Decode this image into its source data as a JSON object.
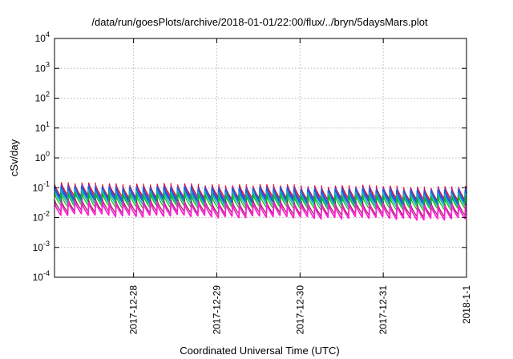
{
  "chart_data": {
    "type": "line",
    "title": "/data/run/goesPlots/archive/2018-01-01/22:00/flux/../bryn/5daysMars.plot",
    "xlabel": "Coordinated Universal Time (UTC)",
    "ylabel": "cSv/day",
    "yscale": "log",
    "ylim": [
      0.0001,
      10000
    ],
    "xlim": [
      -0.95,
      4.0
    ],
    "x_unit": "days relative to 2017-12-28 00:00 UTC",
    "grid": true,
    "x_ticks": [
      {
        "value": 0,
        "label": "2017-12-28"
      },
      {
        "value": 1,
        "label": "2017-12-29"
      },
      {
        "value": 2,
        "label": "2017-12-30"
      },
      {
        "value": 3,
        "label": "2017-12-31"
      },
      {
        "value": 4,
        "label": "2018-1-1"
      }
    ],
    "y_ticks": [
      {
        "value": 0.0001,
        "base": "10",
        "exp": "-4"
      },
      {
        "value": 0.001,
        "base": "10",
        "exp": "-3"
      },
      {
        "value": 0.01,
        "base": "10",
        "exp": "-2"
      },
      {
        "value": 0.1,
        "base": "10",
        "exp": "-1"
      },
      {
        "value": 1,
        "base": "10",
        "exp": "0"
      },
      {
        "value": 10,
        "base": "10",
        "exp": "1"
      },
      {
        "value": 100,
        "base": "10",
        "exp": "2"
      },
      {
        "value": 1000,
        "base": "10",
        "exp": "3"
      },
      {
        "value": 10000,
        "base": "10",
        "exp": "4"
      }
    ],
    "pattern": {
      "period_days": 0.0823,
      "description": "sawtooth: sharp rise then decay each cycle",
      "trend_note": "slight decline over the 5-day window"
    },
    "series": [
      {
        "color": "#ff0000",
        "width": 1.2,
        "peak_start": 0.135,
        "trough_start": 0.052,
        "peak_end": 0.1,
        "trough_end": 0.038
      },
      {
        "color": "#7b2bd6",
        "width": 1.4,
        "peak_start": 0.118,
        "trough_start": 0.045,
        "peak_end": 0.088,
        "trough_end": 0.033
      },
      {
        "color": "#1f5fd6",
        "width": 2.4,
        "peak_start": 0.1,
        "trough_start": 0.038,
        "peak_end": 0.075,
        "trough_end": 0.028
      },
      {
        "color": "#18b8b8",
        "width": 1.6,
        "peak_start": 0.078,
        "trough_start": 0.03,
        "peak_end": 0.058,
        "trough_end": 0.022
      },
      {
        "color": "#00c000",
        "width": 1.2,
        "peak_start": 0.062,
        "trough_start": 0.024,
        "peak_end": 0.046,
        "trough_end": 0.018
      },
      {
        "color": "#8b2252",
        "width": 1.2,
        "peak_start": 0.04,
        "trough_start": 0.016,
        "peak_end": 0.028,
        "trough_end": 0.011
      },
      {
        "color": "#ff1fd0",
        "width": 1.8,
        "peak_start": 0.033,
        "trough_start": 0.0125,
        "peak_end": 0.024,
        "trough_end": 0.0088
      }
    ]
  }
}
